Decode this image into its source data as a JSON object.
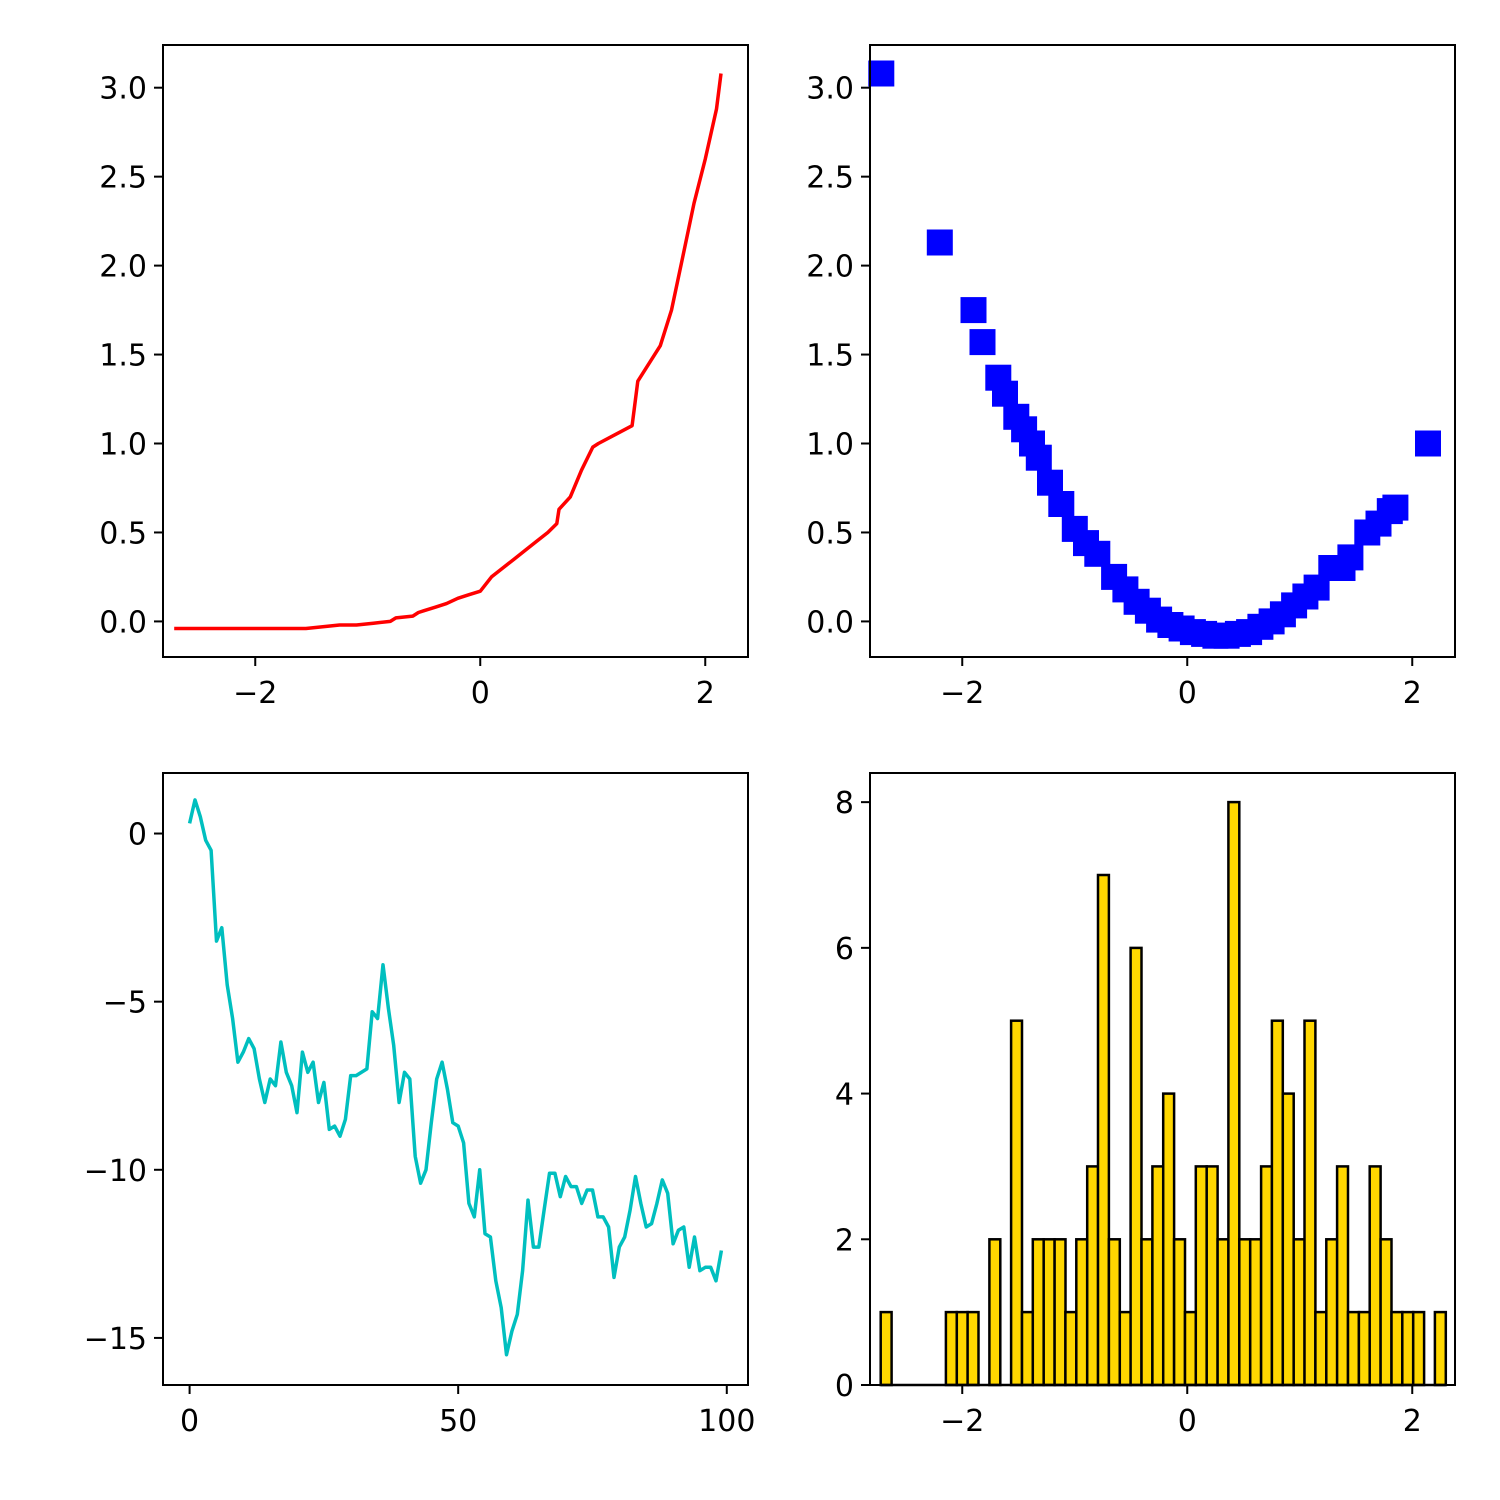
{
  "colors": {
    "panel1_line": "#ff0000",
    "panel2_marker": "#0000ff",
    "panel3_line": "#00bfbf",
    "panel4_fill": "#ffd700",
    "panel4_edge": "#000000"
  },
  "chart_data": [
    {
      "type": "line",
      "title": "",
      "xlabel": "",
      "ylabel": "",
      "xlim": [
        -2.82,
        2.38
      ],
      "ylim": [
        -0.2,
        3.24
      ],
      "xticks": [
        -2,
        0,
        2
      ],
      "xtick_labels": [
        "−2",
        "0",
        "2"
      ],
      "yticks": [
        0.0,
        0.5,
        1.0,
        1.5,
        2.0,
        2.5,
        3.0
      ],
      "ytick_labels": [
        "0.0",
        "0.5",
        "1.0",
        "1.5",
        "2.0",
        "2.5",
        "3.0"
      ],
      "series": [
        {
          "x": [
            -2.72,
            -2.2,
            -2.0,
            -1.8,
            -1.55,
            -1.4,
            -1.25,
            -1.1,
            -0.95,
            -0.8,
            -0.75,
            -0.6,
            -0.55,
            -0.5,
            -0.4,
            -0.3,
            -0.2,
            -0.1,
            0.0,
            0.1,
            0.2,
            0.3,
            0.4,
            0.5,
            0.6,
            0.68,
            0.7,
            0.8,
            0.9,
            1.0,
            1.05,
            1.2,
            1.35,
            1.4,
            1.6,
            1.7,
            1.8,
            1.9,
            2.0,
            2.1,
            2.14
          ],
          "y": [
            -0.04,
            -0.04,
            -0.04,
            -0.04,
            -0.04,
            -0.03,
            -0.02,
            -0.02,
            -0.01,
            0.0,
            0.02,
            0.03,
            0.05,
            0.06,
            0.08,
            0.1,
            0.13,
            0.15,
            0.17,
            0.25,
            0.3,
            0.35,
            0.4,
            0.45,
            0.5,
            0.55,
            0.63,
            0.7,
            0.85,
            0.98,
            1.0,
            1.05,
            1.1,
            1.35,
            1.55,
            1.75,
            2.05,
            2.35,
            2.6,
            2.88,
            3.08
          ]
        }
      ]
    },
    {
      "type": "scatter",
      "title": "",
      "xlabel": "",
      "ylabel": "",
      "xlim": [
        -2.82,
        2.38
      ],
      "ylim": [
        -0.2,
        3.24
      ],
      "xticks": [
        -2,
        0,
        2
      ],
      "xtick_labels": [
        "−2",
        "0",
        "2"
      ],
      "yticks": [
        0.0,
        0.5,
        1.0,
        1.5,
        2.0,
        2.5,
        3.0
      ],
      "ytick_labels": [
        "0.0",
        "0.5",
        "1.0",
        "1.5",
        "2.0",
        "2.5",
        "3.0"
      ],
      "marker": "square",
      "series": [
        {
          "x": [
            -2.72,
            -2.2,
            -1.9,
            -1.82,
            -1.68,
            -1.62,
            -1.52,
            -1.45,
            -1.38,
            -1.32,
            -1.22,
            -1.12,
            -1.0,
            -0.9,
            -0.8,
            -0.65,
            -0.55,
            -0.45,
            -0.35,
            -0.25,
            -0.15,
            -0.05,
            0.05,
            0.15,
            0.25,
            0.35,
            0.45,
            0.55,
            0.65,
            0.75,
            0.85,
            0.95,
            1.05,
            1.15,
            1.28,
            1.38,
            1.45,
            1.6,
            1.7,
            1.8,
            1.85,
            2.14
          ],
          "y": [
            3.08,
            2.13,
            1.75,
            1.57,
            1.37,
            1.28,
            1.15,
            1.08,
            1.0,
            0.92,
            0.78,
            0.66,
            0.52,
            0.44,
            0.38,
            0.25,
            0.18,
            0.11,
            0.06,
            0.01,
            -0.02,
            -0.04,
            -0.06,
            -0.07,
            -0.08,
            -0.08,
            -0.07,
            -0.06,
            -0.03,
            0.0,
            0.04,
            0.09,
            0.14,
            0.19,
            0.3,
            0.3,
            0.36,
            0.5,
            0.55,
            0.62,
            0.64,
            1.0
          ]
        }
      ]
    },
    {
      "type": "line",
      "title": "",
      "xlabel": "",
      "ylabel": "",
      "xlim": [
        -4.95,
        103.95
      ],
      "ylim": [
        -16.4,
        1.8
      ],
      "xticks": [
        0,
        50,
        100
      ],
      "xtick_labels": [
        "0",
        "50",
        "100"
      ],
      "yticks": [
        0,
        -5,
        -10,
        -15
      ],
      "ytick_labels": [
        "0",
        "−5",
        "−10",
        "−15"
      ],
      "series": [
        {
          "x": [
            0,
            1,
            2,
            3,
            4,
            5,
            6,
            7,
            8,
            9,
            10,
            11,
            12,
            13,
            14,
            15,
            16,
            17,
            18,
            19,
            20,
            21,
            22,
            23,
            24,
            25,
            26,
            27,
            28,
            29,
            30,
            31,
            32,
            33,
            34,
            35,
            36,
            37,
            38,
            39,
            40,
            41,
            42,
            43,
            44,
            45,
            46,
            47,
            48,
            49,
            50,
            51,
            52,
            53,
            54,
            55,
            56,
            57,
            58,
            59,
            60,
            61,
            62,
            63,
            64,
            65,
            66,
            67,
            68,
            69,
            70,
            71,
            72,
            73,
            74,
            75,
            76,
            77,
            78,
            79,
            80,
            81,
            82,
            83,
            84,
            85,
            86,
            87,
            88,
            89,
            90,
            91,
            92,
            93,
            94,
            95,
            96,
            97,
            98,
            99
          ],
          "y": [
            0.3,
            1.0,
            0.5,
            -0.2,
            -0.5,
            -3.2,
            -2.8,
            -4.5,
            -5.5,
            -6.8,
            -6.5,
            -6.1,
            -6.4,
            -7.3,
            -8.0,
            -7.3,
            -7.5,
            -6.2,
            -7.1,
            -7.5,
            -8.3,
            -6.5,
            -7.1,
            -6.8,
            -8.0,
            -7.4,
            -8.8,
            -8.7,
            -9.0,
            -8.5,
            -7.2,
            -7.2,
            -7.1,
            -7.0,
            -5.3,
            -5.5,
            -3.9,
            -5.2,
            -6.3,
            -8.0,
            -7.1,
            -7.3,
            -9.6,
            -10.4,
            -10.0,
            -8.6,
            -7.3,
            -6.8,
            -7.6,
            -8.6,
            -8.7,
            -9.2,
            -11.0,
            -11.4,
            -10.0,
            -11.9,
            -12.0,
            -13.3,
            -14.1,
            -15.5,
            -14.8,
            -14.3,
            -13.0,
            -10.9,
            -12.3,
            -12.3,
            -11.2,
            -10.1,
            -10.1,
            -10.8,
            -10.2,
            -10.5,
            -10.5,
            -11.0,
            -10.6,
            -10.6,
            -11.4,
            -11.4,
            -11.7,
            -13.2,
            -12.3,
            -12.0,
            -11.2,
            -10.2,
            -11.0,
            -11.7,
            -11.6,
            -11.0,
            -10.3,
            -10.7,
            -12.2,
            -11.8,
            -11.7,
            -12.9,
            -12.0,
            -13.0,
            -12.9,
            -12.9,
            -13.3,
            -12.4
          ]
        }
      ]
    },
    {
      "type": "bar",
      "title": "",
      "xlabel": "",
      "ylabel": "",
      "xlim": [
        -2.82,
        2.38
      ],
      "ylim": [
        0,
        8.4
      ],
      "xticks": [
        -2,
        0,
        2
      ],
      "xtick_labels": [
        "−2",
        "0",
        "2"
      ],
      "yticks": [
        0,
        2,
        4,
        6,
        8
      ],
      "ytick_labels": [
        "0",
        "2",
        "4",
        "6",
        "8"
      ],
      "bin_start": -2.725,
      "bin_width": 0.0966,
      "values": [
        1,
        0,
        0,
        0,
        0,
        0,
        1,
        1,
        1,
        0,
        2,
        0,
        5,
        1,
        2,
        2,
        2,
        1,
        2,
        3,
        7,
        2,
        1,
        6,
        2,
        3,
        4,
        2,
        1,
        3,
        3,
        2,
        8,
        2,
        2,
        3,
        5,
        4,
        2,
        5,
        1,
        2,
        3,
        1,
        1,
        3,
        2,
        1,
        1,
        1,
        0,
        1
      ]
    }
  ]
}
